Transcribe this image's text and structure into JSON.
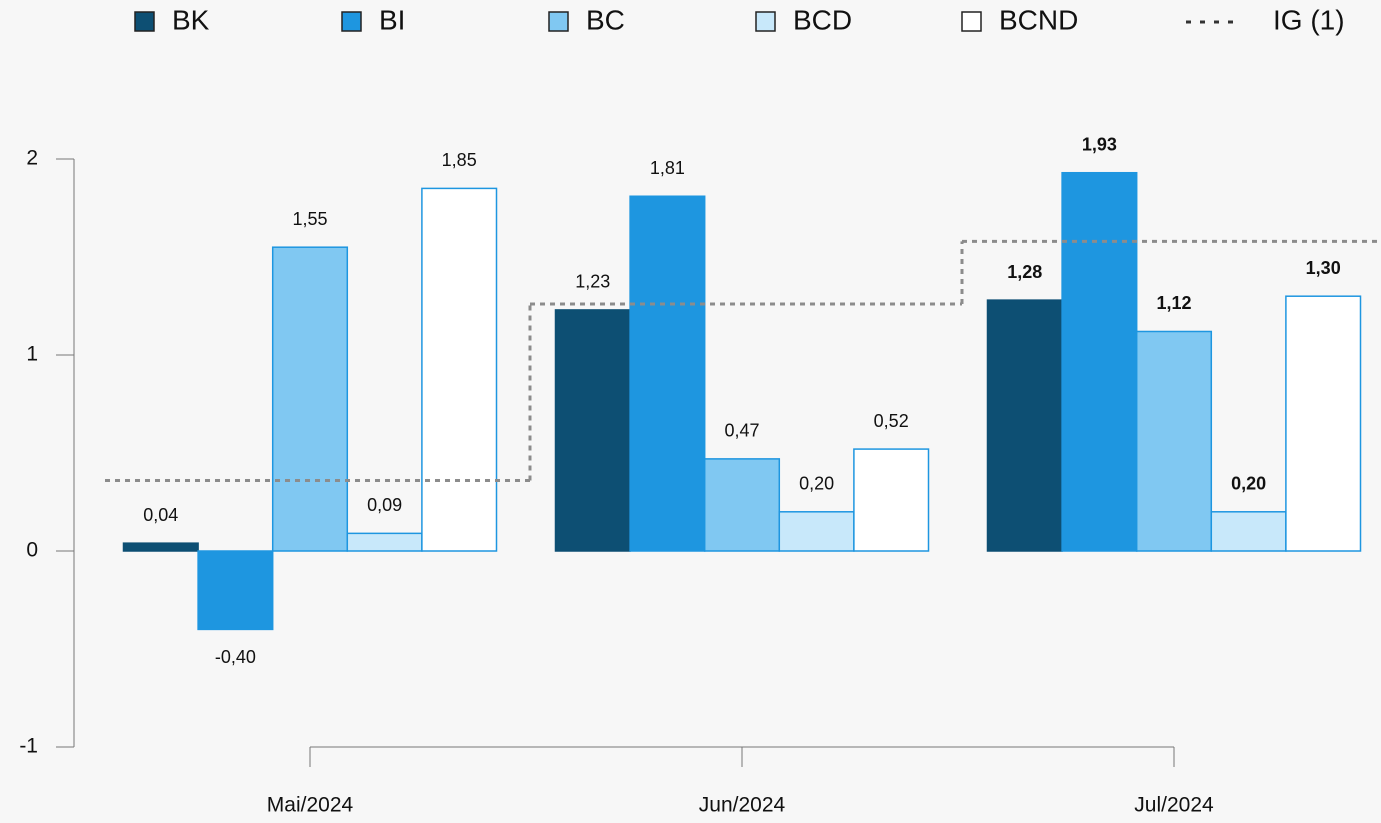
{
  "chart_data": {
    "type": "bar",
    "categories": [
      "Mai/2024",
      "Jun/2024",
      "Jul/2024"
    ],
    "series": [
      {
        "name": "BK",
        "color": "#0d4f73",
        "values": [
          0.04,
          1.23,
          1.28
        ],
        "value_labels": [
          "0,04",
          "1,23",
          "1,28"
        ]
      },
      {
        "name": "BI",
        "color": "#1e96e0",
        "values": [
          -0.4,
          1.81,
          1.93
        ],
        "value_labels": [
          "-0,40",
          "1,81",
          "1,93"
        ]
      },
      {
        "name": "BC",
        "color": "#80c8f2",
        "values": [
          1.55,
          0.47,
          1.12
        ],
        "value_labels": [
          "1,55",
          "0,47",
          "1,12"
        ]
      },
      {
        "name": "BCD",
        "color": "#c8e8fa",
        "values": [
          0.09,
          0.2,
          0.2
        ],
        "value_labels": [
          "0,09",
          "0,20",
          "0,20"
        ]
      },
      {
        "name": "BCND",
        "color": "#ffffff",
        "values": [
          1.85,
          0.52,
          1.3
        ],
        "value_labels": [
          "1,85",
          "0,52",
          "1,30"
        ]
      },
      {
        "name": "IG (1)",
        "color": "#8c8c8c",
        "type": "step",
        "dashed": true,
        "values": [
          0.36,
          1.26,
          1.58
        ]
      }
    ],
    "bar_outline": "#1e96e0",
    "bold_labels": [
      false,
      false,
      true
    ],
    "ylim": [
      -1,
      2
    ],
    "yticks": [
      -1,
      0,
      1,
      2
    ],
    "grid": false,
    "legend": "top"
  }
}
